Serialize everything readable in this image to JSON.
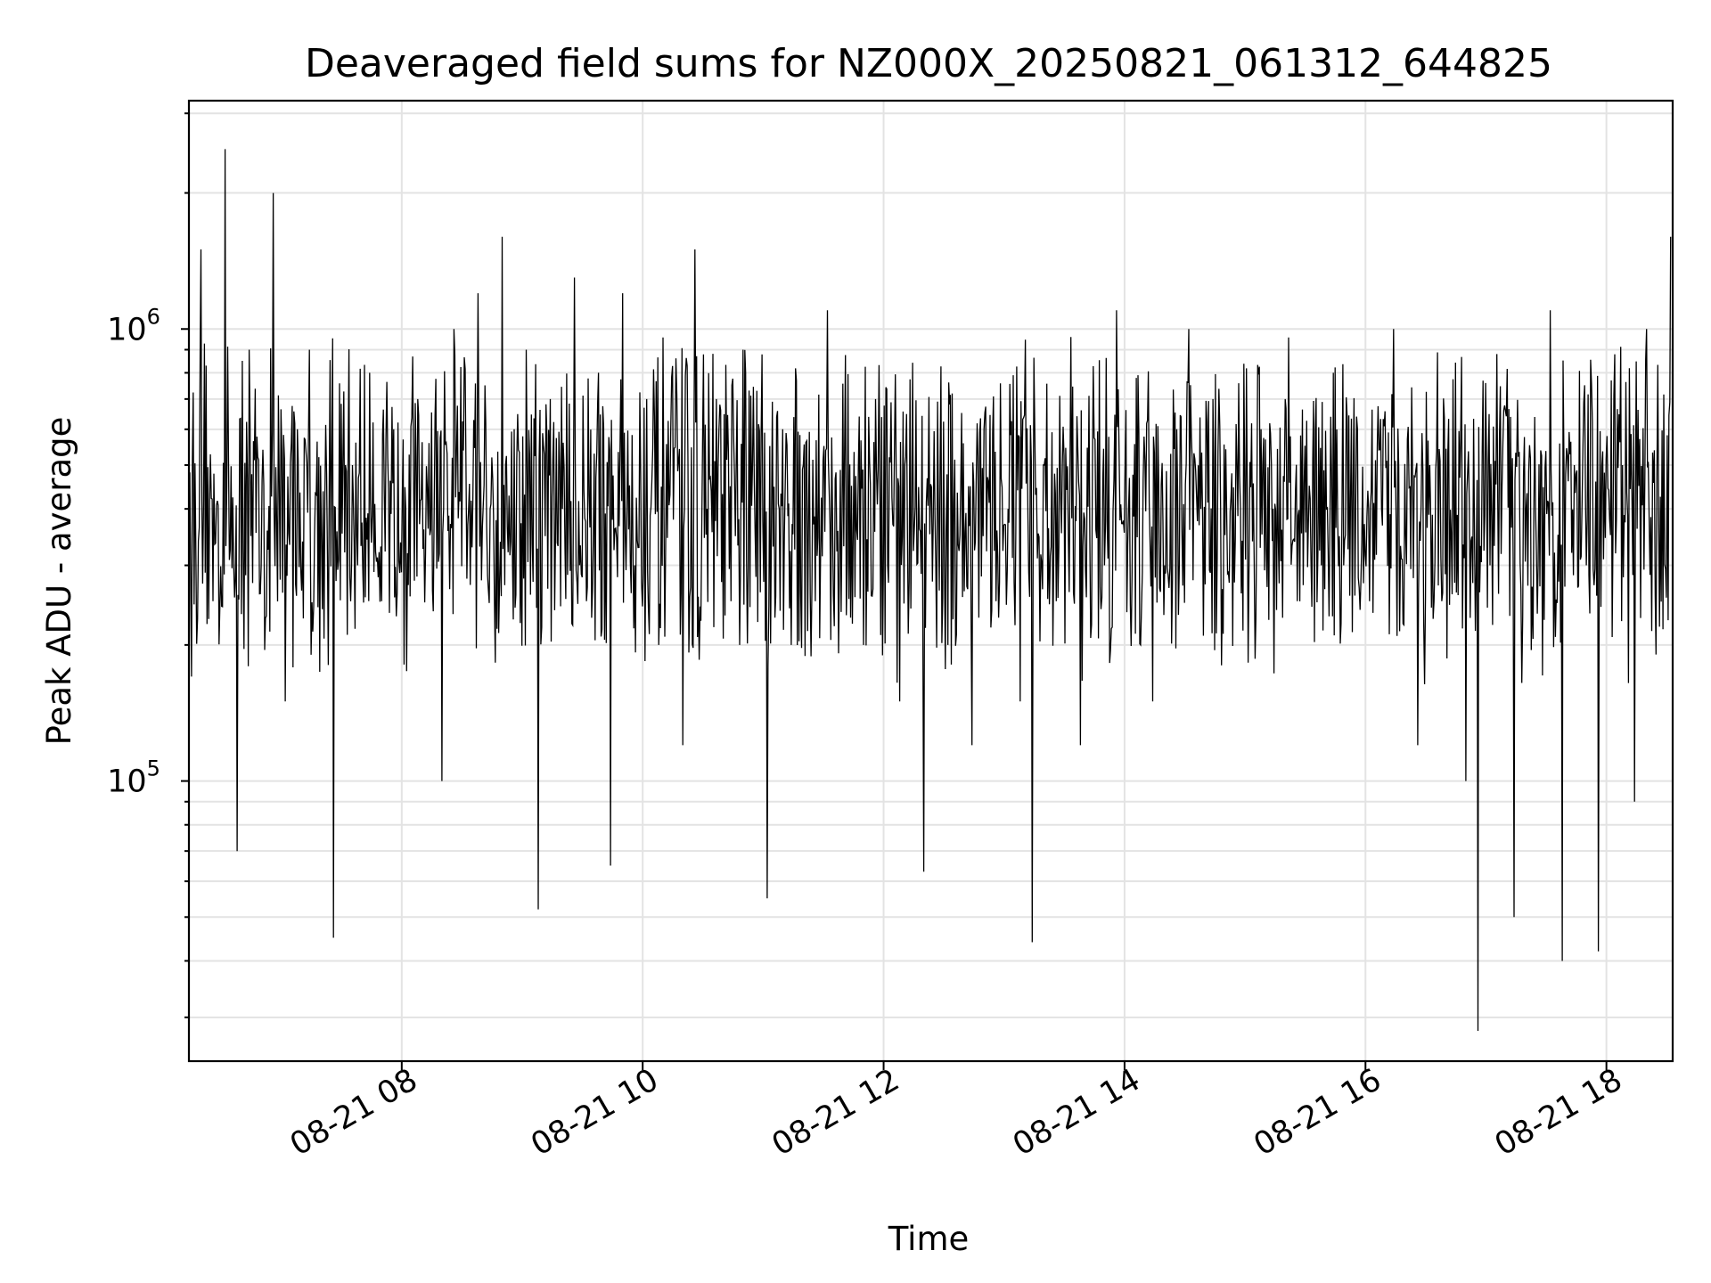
{
  "chart_data": {
    "type": "line",
    "title": "Deaveraged field sums for NZ000X_20250821_061312_644825",
    "xlabel": "Time",
    "ylabel": "Peak ADU - average",
    "yscale": "log",
    "ylim": [
      24000,
      3200000
    ],
    "xlim": [
      "2025-08-21 06:14",
      "2025-08-21 18:33"
    ],
    "grid": true,
    "color": "#000000",
    "x_ticks": [
      {
        "label": "08-21 08",
        "value": "2025-08-21 08:00"
      },
      {
        "label": "08-21 10",
        "value": "2025-08-21 10:00"
      },
      {
        "label": "08-21 12",
        "value": "2025-08-21 12:00"
      },
      {
        "label": "08-21 14",
        "value": "2025-08-21 14:00"
      },
      {
        "label": "08-21 16",
        "value": "2025-08-21 16:00"
      },
      {
        "label": "08-21 18",
        "value": "2025-08-21 18:00"
      }
    ],
    "y_ticks": [
      {
        "base": "10",
        "exp": "5",
        "value": 100000
      },
      {
        "base": "10",
        "exp": "6",
        "value": 1000000
      }
    ],
    "y_minor_ticks": [
      30000,
      40000,
      50000,
      60000,
      70000,
      80000,
      90000,
      200000,
      300000,
      400000,
      500000,
      600000,
      700000,
      800000,
      900000,
      2000000,
      3000000
    ],
    "series": [
      {
        "points": [
          [
            "2025-08-21 06:14",
            450000
          ],
          [
            "2025-08-21 06:20",
            1500000
          ],
          [
            "2025-08-21 06:26",
            250000
          ],
          [
            "2025-08-21 06:32",
            2500000
          ],
          [
            "2025-08-21 06:38",
            70000
          ],
          [
            "2025-08-21 06:44",
            900000
          ],
          [
            "2025-08-21 06:50",
            300000
          ],
          [
            "2025-08-21 06:56",
            2000000
          ],
          [
            "2025-08-21 07:02",
            150000
          ],
          [
            "2025-08-21 07:08",
            600000
          ],
          [
            "2025-08-21 07:14",
            900000
          ],
          [
            "2025-08-21 07:20",
            350000
          ],
          [
            "2025-08-21 07:26",
            45000
          ],
          [
            "2025-08-21 07:32",
            500000
          ],
          [
            "2025-08-21 07:38",
            300000
          ],
          [
            "2025-08-21 07:44",
            800000
          ],
          [
            "2025-08-21 07:50",
            250000
          ],
          [
            "2025-08-21 07:56",
            600000
          ],
          [
            "2025-08-21 08:02",
            400000
          ],
          [
            "2025-08-21 08:08",
            700000
          ],
          [
            "2025-08-21 08:14",
            350000
          ],
          [
            "2025-08-21 08:20",
            100000
          ],
          [
            "2025-08-21 08:26",
            1000000
          ],
          [
            "2025-08-21 08:32",
            500000
          ],
          [
            "2025-08-21 08:38",
            1200000
          ],
          [
            "2025-08-21 08:44",
            400000
          ],
          [
            "2025-08-21 08:50",
            1600000
          ],
          [
            "2025-08-21 08:56",
            600000
          ],
          [
            "2025-08-21 09:02",
            900000
          ],
          [
            "2025-08-21 09:08",
            52000
          ],
          [
            "2025-08-21 09:14",
            700000
          ],
          [
            "2025-08-21 09:20",
            400000
          ],
          [
            "2025-08-21 09:26",
            1300000
          ],
          [
            "2025-08-21 09:32",
            250000
          ],
          [
            "2025-08-21 09:38",
            800000
          ],
          [
            "2025-08-21 09:44",
            65000
          ],
          [
            "2025-08-21 09:50",
            1200000
          ],
          [
            "2025-08-21 09:56",
            300000
          ],
          [
            "2025-08-21 10:02",
            700000
          ],
          [
            "2025-08-21 10:08",
            200000
          ],
          [
            "2025-08-21 10:14",
            600000
          ],
          [
            "2025-08-21 10:20",
            120000
          ],
          [
            "2025-08-21 10:26",
            1500000
          ],
          [
            "2025-08-21 10:32",
            400000
          ],
          [
            "2025-08-21 10:38",
            600000
          ],
          [
            "2025-08-21 10:44",
            250000
          ],
          [
            "2025-08-21 10:50",
            900000
          ],
          [
            "2025-08-21 10:56",
            350000
          ],
          [
            "2025-08-21 11:02",
            55000
          ],
          [
            "2025-08-21 11:08",
            400000
          ],
          [
            "2025-08-21 11:14",
            200000
          ],
          [
            "2025-08-21 11:20",
            500000
          ],
          [
            "2025-08-21 11:26",
            250000
          ],
          [
            "2025-08-21 11:32",
            1100000
          ],
          [
            "2025-08-21 11:38",
            300000
          ],
          [
            "2025-08-21 11:44",
            450000
          ],
          [
            "2025-08-21 11:50",
            200000
          ],
          [
            "2025-08-21 11:56",
            700000
          ],
          [
            "2025-08-21 12:02",
            300000
          ],
          [
            "2025-08-21 12:08",
            150000
          ],
          [
            "2025-08-21 12:14",
            400000
          ],
          [
            "2025-08-21 12:20",
            63000
          ],
          [
            "2025-08-21 12:26",
            300000
          ],
          [
            "2025-08-21 12:32",
            200000
          ],
          [
            "2025-08-21 12:38",
            350000
          ],
          [
            "2025-08-21 12:44",
            120000
          ],
          [
            "2025-08-21 12:50",
            600000
          ],
          [
            "2025-08-21 12:56",
            250000
          ],
          [
            "2025-08-21 13:02",
            400000
          ],
          [
            "2025-08-21 13:08",
            150000
          ],
          [
            "2025-08-21 13:14",
            44000
          ],
          [
            "2025-08-21 13:20",
            500000
          ],
          [
            "2025-08-21 13:26",
            250000
          ],
          [
            "2025-08-21 13:32",
            350000
          ],
          [
            "2025-08-21 13:38",
            120000
          ],
          [
            "2025-08-21 13:44",
            500000
          ],
          [
            "2025-08-21 13:50",
            300000
          ],
          [
            "2025-08-21 13:56",
            1100000
          ],
          [
            "2025-08-21 14:02",
            400000
          ],
          [
            "2025-08-21 14:08",
            200000
          ],
          [
            "2025-08-21 14:14",
            150000
          ],
          [
            "2025-08-21 14:20",
            300000
          ],
          [
            "2025-08-21 14:26",
            600000
          ],
          [
            "2025-08-21 14:32",
            1000000
          ],
          [
            "2025-08-21 14:38",
            400000
          ],
          [
            "2025-08-21 14:44",
            700000
          ],
          [
            "2025-08-21 14:50",
            350000
          ],
          [
            "2025-08-21 14:56",
            500000
          ],
          [
            "2025-08-21 15:02",
            300000
          ],
          [
            "2025-08-21 15:08",
            600000
          ],
          [
            "2025-08-21 15:14",
            400000
          ],
          [
            "2025-08-21 15:20",
            700000
          ],
          [
            "2025-08-21 15:26",
            250000
          ],
          [
            "2025-08-21 15:32",
            450000
          ],
          [
            "2025-08-21 15:38",
            300000
          ],
          [
            "2025-08-21 15:44",
            800000
          ],
          [
            "2025-08-21 15:50",
            350000
          ],
          [
            "2025-08-21 15:56",
            600000
          ],
          [
            "2025-08-21 16:02",
            250000
          ],
          [
            "2025-08-21 16:08",
            400000
          ],
          [
            "2025-08-21 16:14",
            1000000
          ],
          [
            "2025-08-21 16:20",
            350000
          ],
          [
            "2025-08-21 16:26",
            120000
          ],
          [
            "2025-08-21 16:32",
            500000
          ],
          [
            "2025-08-21 16:38",
            250000
          ],
          [
            "2025-08-21 16:44",
            400000
          ],
          [
            "2025-08-21 16:50",
            100000
          ],
          [
            "2025-08-21 16:56",
            28000
          ],
          [
            "2025-08-21 17:02",
            300000
          ],
          [
            "2025-08-21 17:08",
            450000
          ],
          [
            "2025-08-21 17:14",
            50000
          ],
          [
            "2025-08-21 17:20",
            400000
          ],
          [
            "2025-08-21 17:26",
            300000
          ],
          [
            "2025-08-21 17:32",
            1100000
          ],
          [
            "2025-08-21 17:38",
            40000
          ],
          [
            "2025-08-21 17:44",
            500000
          ],
          [
            "2025-08-21 17:50",
            300000
          ],
          [
            "2025-08-21 17:56",
            42000
          ],
          [
            "2025-08-21 18:02",
            350000
          ],
          [
            "2025-08-21 18:08",
            500000
          ],
          [
            "2025-08-21 18:14",
            90000
          ],
          [
            "2025-08-21 18:20",
            1000000
          ],
          [
            "2025-08-21 18:26",
            400000
          ],
          [
            "2025-08-21 18:32",
            1600000
          ]
        ]
      }
    ]
  }
}
